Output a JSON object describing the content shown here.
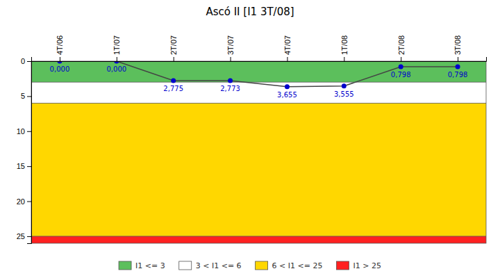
{
  "chart_data": {
    "type": "line",
    "title": "Ascó II [I1 3T/08]",
    "categories": [
      "4T/06",
      "1T/07",
      "2T/07",
      "3T/07",
      "4T/07",
      "1T/08",
      "2T/08",
      "3T/08"
    ],
    "values": [
      0.0,
      0.0,
      2.775,
      2.773,
      3.655,
      3.555,
      0.798,
      0.798
    ],
    "value_labels": [
      "0,000",
      "0,000",
      "2,775",
      "2,773",
      "3,655",
      "3,555",
      "0,798",
      "0,798"
    ],
    "data_labels": true,
    "color": "#0000CC",
    "marker": "circle",
    "ylim": [
      0,
      26
    ],
    "yticks": [
      0,
      5,
      10,
      15,
      20,
      25
    ],
    "grid": false,
    "legend": "bottom",
    "bands": [
      {
        "name": "I1 <= 3",
        "from": 0,
        "to": 3,
        "color": "#5CBF5C"
      },
      {
        "name": "3 < I1 <= 6",
        "from": 3,
        "to": 6,
        "color": "#FFFFFF"
      },
      {
        "name": "6 < I1 <= 25",
        "from": 6,
        "to": 25,
        "color": "#FFD700"
      },
      {
        "name": "I1 > 25",
        "from": 25,
        "to": 26,
        "color": "#FF2020"
      }
    ]
  }
}
